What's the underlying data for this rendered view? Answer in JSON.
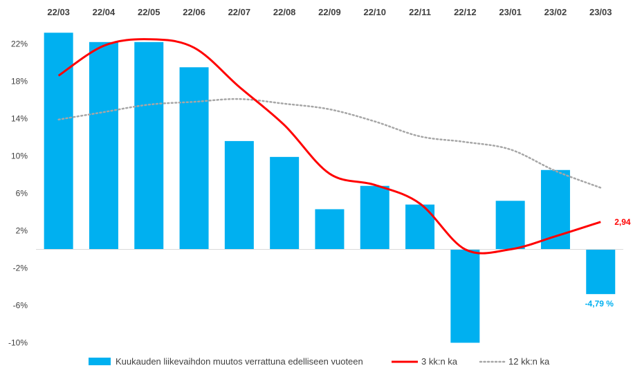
{
  "chart_data": {
    "type": "bar",
    "categories": [
      "22/03",
      "22/04",
      "22/05",
      "22/06",
      "22/07",
      "22/08",
      "22/09",
      "22/10",
      "22/11",
      "22/12",
      "23/01",
      "23/02",
      "23/03"
    ],
    "y_tick_labels": [
      "22%",
      "18%",
      "14%",
      "10%",
      "6%",
      "2%",
      "-2%",
      "-6%",
      "-10%"
    ],
    "y_tick_values": [
      22,
      18,
      14,
      10,
      6,
      2,
      -2,
      -6,
      -10
    ],
    "ylim": [
      -10,
      24
    ],
    "grid": false,
    "legend_position": "bottom",
    "series": [
      {
        "name": "Kuukauden liikevaihdon muutos verrattuna edelliseen vuoteen",
        "kind": "bar",
        "color": "#00b0f0",
        "values": [
          23.2,
          22.2,
          22.2,
          19.5,
          11.6,
          9.9,
          4.3,
          6.8,
          4.8,
          -10.0,
          5.2,
          8.5,
          -4.79
        ]
      },
      {
        "name": "3 kk:n ka",
        "kind": "line",
        "color": "#ff0000",
        "values": [
          18.6,
          21.8,
          22.5,
          21.6,
          17.4,
          13.3,
          8.1,
          6.9,
          4.9,
          0.0,
          0.0,
          1.4,
          2.94
        ]
      },
      {
        "name": "12 kk:n ka",
        "kind": "dotted-line",
        "color": "#a6a6a6",
        "values": [
          13.9,
          14.7,
          15.5,
          15.8,
          16.1,
          15.6,
          15.0,
          13.7,
          12.1,
          11.5,
          10.7,
          8.4,
          6.6
        ]
      }
    ],
    "annotations": [
      {
        "text": "2,94 %",
        "series": 1,
        "index": 12,
        "color": "#ff0000"
      },
      {
        "text": "-4,79 %",
        "series": 0,
        "index": 12,
        "color": "#00b0f0"
      }
    ]
  }
}
